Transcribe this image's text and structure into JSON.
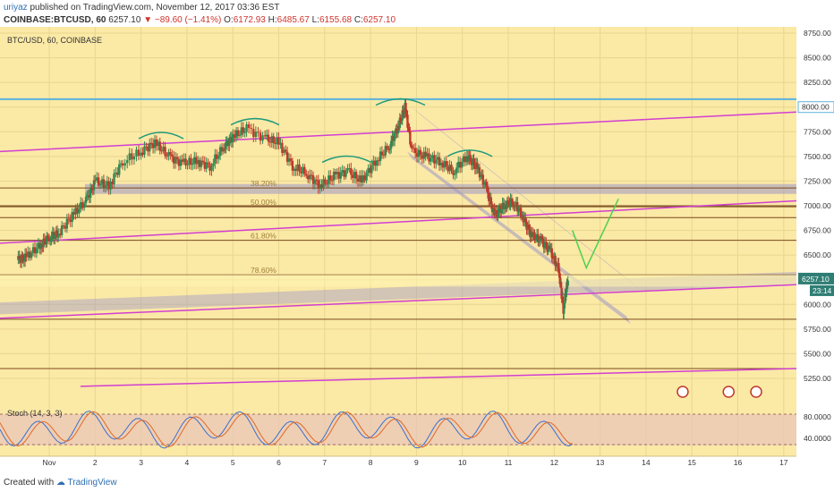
{
  "header": {
    "author": "uriyaz",
    "published_text": "published on TradingView.com, November 12, 2017 03:36 EST",
    "ticker": "COINBASE:BTCUSD, 60",
    "last": "6257.10",
    "change": "▼ −89.60 (−1.41%)",
    "o_label": "O:",
    "o_value": "6172.93",
    "h_label": "H:",
    "h_value": "6485.67",
    "l_label": "L:",
    "l_value": "6155.68",
    "c_label": "C:",
    "c_value": "6257.10"
  },
  "symbol_label": "BTC/USD, 60, COINBASE",
  "stoch_label": "Stoch (14, 3, 3)",
  "footer": {
    "created_with": "Created with",
    "brand": "TradingView"
  },
  "colors": {
    "background": "#fbe9a6",
    "candle_up": "#2f8a52",
    "candle_down": "#c0392b",
    "trend_line": "#d23fd1",
    "support_zone": "#9f98c8",
    "horizontal_line": "#7a4a1c",
    "resistance_line": "#5bb3d9",
    "projection": "#4cd14c",
    "stoch_band": "#e9c6b7",
    "price_tag": "#2f7e74"
  },
  "chart_data": {
    "type": "candlestick",
    "title": "BTC/USD, 60, COINBASE",
    "y_axis": {
      "ticks": [
        8750,
        8500,
        8250,
        8000,
        7750,
        7500,
        7250,
        7000,
        6750,
        6500,
        6250,
        6000,
        5750,
        5500,
        5250
      ],
      "tick_labels": [
        "8750.00",
        "8500.00",
        "8250.00",
        "8000.00",
        "7750.00",
        "7500.00",
        "7250.00",
        "7000.00",
        "6750.00",
        "6500.00",
        "6250.00",
        "6000.00",
        "5750.00",
        "5500.00",
        "5250.00"
      ],
      "range": [
        5150,
        8850
      ]
    },
    "x_axis": {
      "ticks": [
        "Nov",
        "2",
        "3",
        "4",
        "5",
        "6",
        "7",
        "8",
        "9",
        "10",
        "11",
        "12",
        "13",
        "14",
        "15",
        "16",
        "17"
      ],
      "range_days": [
        0.3,
        17.5
      ]
    },
    "last_price": {
      "value": 6257.1,
      "label": "6257.10",
      "countdown": "23:14"
    },
    "price_tags": [
      {
        "value": 8000,
        "label": "8000.00"
      }
    ],
    "horizontal_lines": [
      5850,
      5350,
      6880,
      7000
    ],
    "fib_levels": [
      {
        "label": "38.20%",
        "value": 7180
      },
      {
        "label": "50.00%",
        "value": 6990
      },
      {
        "label": "61.80%",
        "value": 6650
      },
      {
        "label": "78.60%",
        "value": 6300
      }
    ],
    "resistance": 8080,
    "price_path": [
      [
        0.3,
        6450
      ],
      [
        0.5,
        6480
      ],
      [
        0.8,
        6600
      ],
      [
        1.0,
        6680
      ],
      [
        1.2,
        6720
      ],
      [
        1.5,
        6900
      ],
      [
        1.8,
        7050
      ],
      [
        2.0,
        7250
      ],
      [
        2.3,
        7200
      ],
      [
        2.6,
        7450
      ],
      [
        3.0,
        7550
      ],
      [
        3.3,
        7640
      ],
      [
        3.6,
        7500
      ],
      [
        3.9,
        7430
      ],
      [
        4.2,
        7450
      ],
      [
        4.5,
        7400
      ],
      [
        4.8,
        7600
      ],
      [
        5.0,
        7700
      ],
      [
        5.3,
        7780
      ],
      [
        5.7,
        7680
      ],
      [
        6.0,
        7640
      ],
      [
        6.3,
        7400
      ],
      [
        6.6,
        7330
      ],
      [
        6.9,
        7200
      ],
      [
        7.2,
        7300
      ],
      [
        7.5,
        7350
      ],
      [
        7.8,
        7250
      ],
      [
        8.1,
        7450
      ],
      [
        8.4,
        7600
      ],
      [
        8.6,
        7800
      ],
      [
        8.75,
        8000
      ],
      [
        8.9,
        7550
      ],
      [
        9.2,
        7500
      ],
      [
        9.5,
        7450
      ],
      [
        9.8,
        7350
      ],
      [
        10.1,
        7500
      ],
      [
        10.3,
        7400
      ],
      [
        10.5,
        7200
      ],
      [
        10.7,
        6900
      ],
      [
        10.9,
        7000
      ],
      [
        11.1,
        7050
      ],
      [
        11.3,
        6900
      ],
      [
        11.5,
        6700
      ],
      [
        11.7,
        6650
      ],
      [
        11.9,
        6550
      ],
      [
        12.1,
        6350
      ],
      [
        12.2,
        5950
      ],
      [
        12.3,
        6257
      ]
    ],
    "stochastic": {
      "levels": [
        80,
        20
      ],
      "y_ticks": [
        "80.0000",
        "40.0000"
      ]
    }
  }
}
